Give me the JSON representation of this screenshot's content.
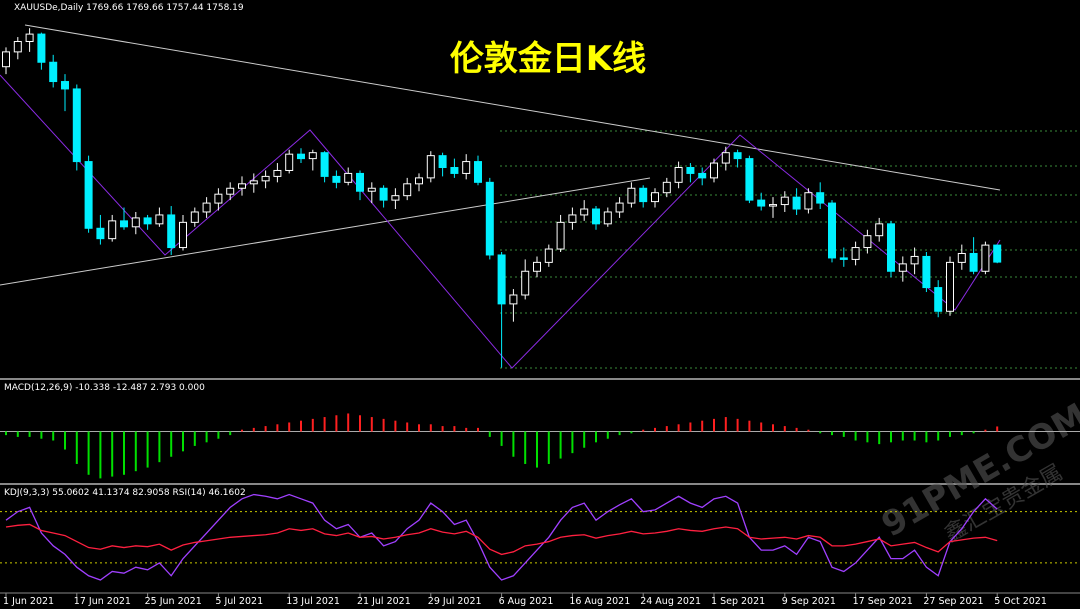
{
  "chart_data": [
    {
      "type": "candlestick",
      "title": "XAUUSDe,Daily  1769.66 1769.66 1757.44 1758.19",
      "annotation": "伦敦金日K线",
      "categories": [
        "1 Jun 2021",
        null,
        null,
        null,
        null,
        null,
        "17 Jun 2021",
        null,
        null,
        null,
        null,
        null,
        "25 Jun 2021",
        null,
        null,
        null,
        null,
        null,
        "5 Jul 2021",
        null,
        null,
        null,
        null,
        null,
        "13 Jul 2021",
        null,
        null,
        null,
        null,
        null,
        "21 Jul 2021",
        null,
        null,
        null,
        null,
        null,
        "29 Jul 2021",
        null,
        null,
        null,
        null,
        null,
        "6 Aug 2021",
        null,
        null,
        null,
        null,
        null,
        "16 Aug 2021",
        null,
        null,
        null,
        null,
        null,
        "24 Aug 2021",
        null,
        null,
        null,
        null,
        null,
        "1 Sep 2021",
        null,
        null,
        null,
        null,
        null,
        "9 Sep 2021",
        null,
        null,
        null,
        null,
        null,
        "17 Sep 2021",
        null,
        null,
        null,
        null,
        null,
        "27 Sep 2021",
        null,
        null,
        null,
        null,
        null,
        "5 Oct 2021"
      ],
      "open": [
        1890,
        1900,
        1907,
        1912,
        1893,
        1880,
        1875,
        1826,
        1781,
        1774,
        1786,
        1782,
        1788,
        1784,
        1790,
        1768,
        1785,
        1792,
        1798,
        1804,
        1808,
        1811,
        1813,
        1816,
        1820,
        1831,
        1828,
        1832,
        1816,
        1812,
        1818,
        1806,
        1808,
        1800,
        1803,
        1811,
        1815,
        1830,
        1822,
        1818,
        1826,
        1812,
        1763,
        1730,
        1736,
        1752,
        1758,
        1767,
        1785,
        1790,
        1794,
        1784,
        1792,
        1798,
        1808,
        1799,
        1805,
        1812,
        1822,
        1818,
        1815,
        1825,
        1832,
        1828,
        1800,
        1796,
        1797,
        1802,
        1794,
        1805,
        1798,
        1761,
        1760,
        1768,
        1776,
        1784,
        1752,
        1757,
        1762,
        1741,
        1725,
        1758,
        1764,
        1752,
        1769.66
      ],
      "high": [
        1903,
        1910,
        1916,
        1913,
        1898,
        1885,
        1878,
        1830,
        1790,
        1790,
        1795,
        1792,
        1790,
        1795,
        1796,
        1790,
        1795,
        1802,
        1808,
        1812,
        1816,
        1818,
        1820,
        1825,
        1834,
        1835,
        1834,
        1833,
        1820,
        1822,
        1820,
        1812,
        1810,
        1808,
        1815,
        1818,
        1833,
        1832,
        1828,
        1831,
        1830,
        1815,
        1765,
        1740,
        1760,
        1762,
        1770,
        1790,
        1795,
        1800,
        1796,
        1795,
        1802,
        1812,
        1810,
        1808,
        1815,
        1826,
        1825,
        1822,
        1828,
        1836,
        1834,
        1830,
        1805,
        1802,
        1806,
        1808,
        1808,
        1812,
        1800,
        1768,
        1772,
        1780,
        1788,
        1786,
        1762,
        1768,
        1765,
        1746,
        1762,
        1770,
        1775,
        1772,
        1769.66
      ],
      "low": [
        1885,
        1895,
        1900,
        1888,
        1876,
        1860,
        1820,
        1778,
        1770,
        1772,
        1780,
        1777,
        1780,
        1782,
        1763,
        1766,
        1782,
        1788,
        1793,
        1800,
        1803,
        1805,
        1808,
        1812,
        1818,
        1825,
        1820,
        1812,
        1808,
        1810,
        1800,
        1798,
        1795,
        1794,
        1800,
        1806,
        1812,
        1816,
        1815,
        1814,
        1810,
        1760,
        1687,
        1718,
        1733,
        1748,
        1755,
        1765,
        1780,
        1786,
        1780,
        1782,
        1788,
        1795,
        1795,
        1795,
        1802,
        1808,
        1812,
        1810,
        1812,
        1820,
        1822,
        1798,
        1793,
        1788,
        1792,
        1790,
        1791,
        1794,
        1758,
        1755,
        1756,
        1764,
        1772,
        1748,
        1745,
        1750,
        1738,
        1721,
        1722,
        1753,
        1750,
        1750,
        1757.44
      ],
      "close": [
        1900,
        1907,
        1912,
        1893,
        1880,
        1875,
        1826,
        1781,
        1774,
        1786,
        1782,
        1788,
        1784,
        1790,
        1768,
        1785,
        1792,
        1798,
        1804,
        1808,
        1811,
        1813,
        1816,
        1820,
        1831,
        1828,
        1832,
        1816,
        1812,
        1818,
        1806,
        1808,
        1800,
        1803,
        1811,
        1815,
        1830,
        1822,
        1818,
        1826,
        1812,
        1763,
        1730,
        1736,
        1752,
        1758,
        1767,
        1785,
        1790,
        1794,
        1784,
        1792,
        1798,
        1808,
        1799,
        1805,
        1812,
        1822,
        1818,
        1815,
        1825,
        1832,
        1828,
        1800,
        1796,
        1797,
        1802,
        1794,
        1805,
        1798,
        1761,
        1760,
        1768,
        1776,
        1784,
        1752,
        1757,
        1762,
        1741,
        1725,
        1758,
        1764,
        1752,
        1769.66,
        1758.19
      ],
      "up_color": "#000000",
      "down_color": "#00f0ff",
      "ylim": [
        1680,
        1935
      ]
    },
    {
      "type": "bar",
      "title": "MACD(12,26,9) -10.338 -12.487 2.793 0.000",
      "values": [
        -2,
        -3,
        -3,
        -4,
        -5,
        -10,
        -18,
        -24,
        -26,
        -25,
        -24,
        -22,
        -20,
        -17,
        -14,
        -11,
        -8,
        -6,
        -4,
        -2,
        1,
        2,
        3,
        4,
        5,
        6,
        7,
        8,
        9,
        10,
        9,
        8,
        7,
        6,
        5,
        4,
        4,
        3,
        3,
        2,
        2,
        -3,
        -8,
        -14,
        -18,
        -20,
        -18,
        -15,
        -12,
        -9,
        -6,
        -4,
        -2,
        -1,
        1,
        2,
        3,
        4,
        5,
        6,
        7,
        8,
        7,
        6,
        5,
        4,
        3,
        2,
        1,
        -1,
        -2,
        -3,
        -5,
        -6,
        -7,
        -6,
        -5,
        -5,
        -6,
        -5,
        -3,
        -2,
        -1,
        1,
        2.793
      ],
      "positive_color": "#ff2020",
      "negative_color": "#00e000",
      "ylim": [
        -28,
        28
      ]
    },
    {
      "type": "line",
      "title": "KDJ(9,3,3) 55.0602 41.1374 82.9058 RSI(14) 46.1602",
      "series": [
        {
          "color": "#a040ff",
          "values": [
            70,
            80,
            85,
            55,
            40,
            30,
            15,
            5,
            0,
            10,
            8,
            15,
            12,
            20,
            5,
            25,
            40,
            55,
            70,
            85,
            95,
            100,
            98,
            95,
            100,
            95,
            90,
            70,
            60,
            65,
            50,
            55,
            40,
            45,
            60,
            70,
            90,
            80,
            65,
            70,
            45,
            15,
            0,
            5,
            20,
            35,
            50,
            70,
            85,
            90,
            70,
            80,
            88,
            95,
            80,
            82,
            90,
            98,
            90,
            85,
            95,
            98,
            90,
            50,
            35,
            35,
            40,
            30,
            50,
            45,
            15,
            10,
            20,
            35,
            50,
            25,
            25,
            35,
            15,
            5,
            45,
            60,
            80,
            95,
            82.9058
          ]
        },
        {
          "color": "#ff2040",
          "values": [
            62,
            64,
            65,
            58,
            55,
            52,
            45,
            38,
            36,
            40,
            38,
            40,
            39,
            42,
            35,
            41,
            44,
            46,
            48,
            50,
            51,
            52,
            53,
            55,
            60,
            58,
            60,
            54,
            52,
            55,
            50,
            51,
            48,
            50,
            53,
            55,
            60,
            56,
            54,
            57,
            50,
            36,
            30,
            33,
            40,
            42,
            45,
            50,
            52,
            53,
            49,
            52,
            54,
            57,
            54,
            55,
            57,
            60,
            58,
            57,
            60,
            62,
            60,
            50,
            48,
            49,
            50,
            48,
            52,
            50,
            40,
            40,
            42,
            45,
            48,
            40,
            42,
            44,
            38,
            33,
            45,
            47,
            49,
            50,
            46.1602
          ]
        }
      ],
      "levels": [
        20,
        80
      ],
      "ylim": [
        -14,
        110
      ]
    }
  ],
  "watermark": {
    "brand": "91PME.COM",
    "sub": "鑫汇宝贵金属"
  }
}
